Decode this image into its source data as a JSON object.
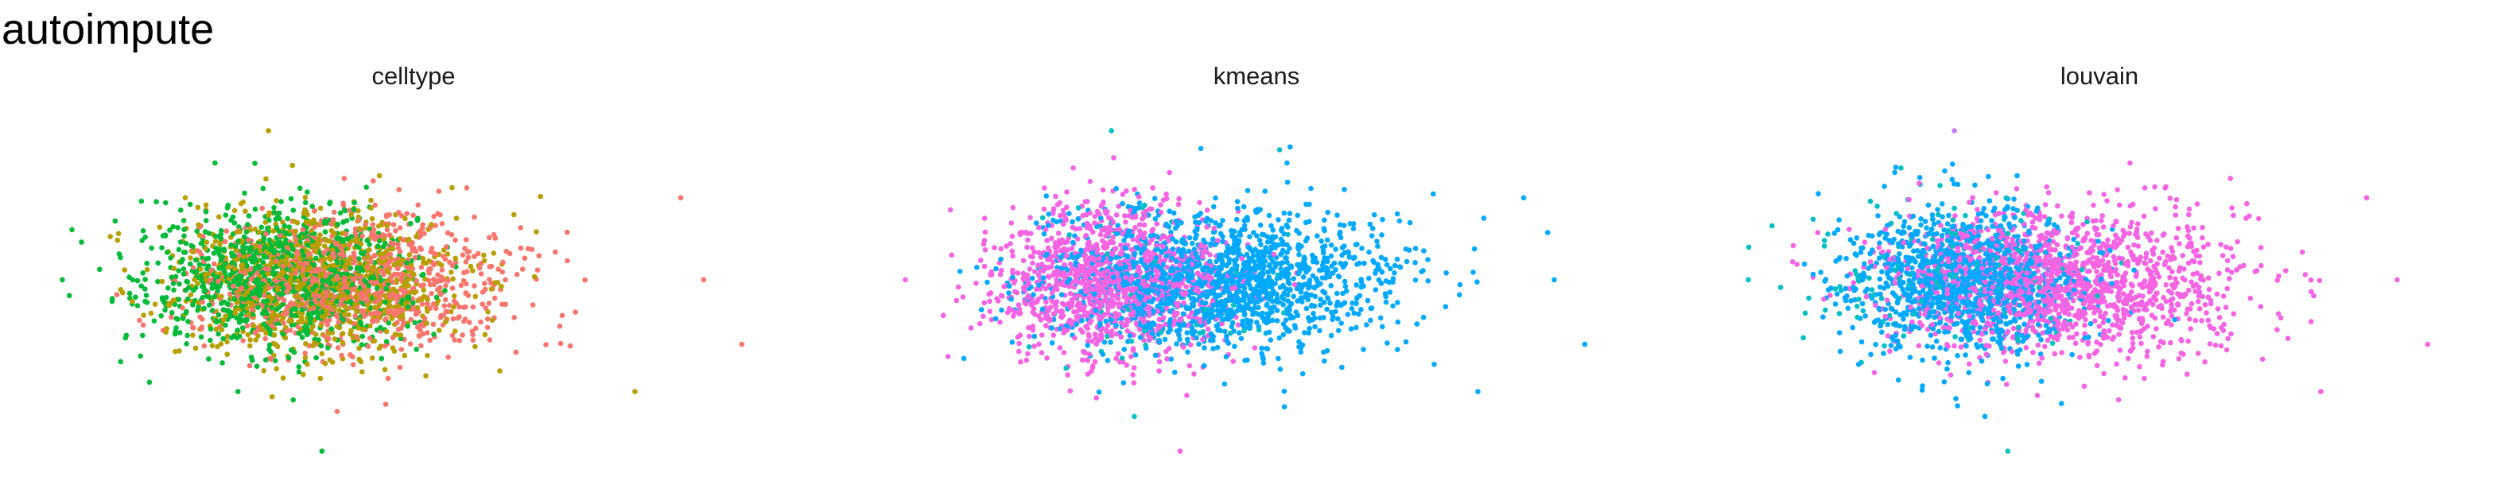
{
  "title": "autoimpute",
  "chart_data": [
    {
      "type": "scatter",
      "title": "celltype",
      "xlabel": "",
      "ylabel": "",
      "xlim": [
        -4,
        6
      ],
      "ylim": [
        -3.6,
        3.6
      ],
      "axes": false,
      "grid": false,
      "legend": "none",
      "series": [
        {
          "color": "#00BA38",
          "n": 1000,
          "center": [
            -0.8,
            0.05
          ],
          "spread": [
            0.85,
            0.72
          ]
        },
        {
          "color": "#B79F00",
          "n": 900,
          "center": [
            -0.3,
            0.0
          ],
          "spread": [
            0.95,
            0.72
          ]
        },
        {
          "color": "#F8766D",
          "n": 900,
          "center": [
            0.2,
            -0.05
          ],
          "spread": [
            1.05,
            0.7
          ]
        }
      ],
      "outliers": [
        {
          "x": -3.6,
          "y": 0.05,
          "color": "#00BA38"
        },
        {
          "x": -0.9,
          "y": 3.05,
          "color": "#B79F00"
        },
        {
          "x": -0.2,
          "y": -3.4,
          "color": "#00BA38"
        },
        {
          "x": 5.3,
          "y": -1.25,
          "color": "#F8766D"
        },
        {
          "x": 4.8,
          "y": 0.05,
          "color": "#F8766D"
        },
        {
          "x": 4.5,
          "y": 1.7,
          "color": "#F8766D"
        },
        {
          "x": 3.9,
          "y": -2.2,
          "color": "#B79F00"
        },
        {
          "x": -1.3,
          "y": -2.2,
          "color": "#00BA38"
        },
        {
          "x": 0.0,
          "y": -2.6,
          "color": "#F8766D"
        },
        {
          "x": -1.6,
          "y": 2.4,
          "color": "#00BA38"
        }
      ]
    },
    {
      "type": "scatter",
      "title": "kmeans",
      "xlabel": "",
      "ylabel": "",
      "xlim": [
        -4,
        6
      ],
      "ylim": [
        -3.6,
        3.6
      ],
      "axes": false,
      "grid": false,
      "legend": "none",
      "series": [
        {
          "color": "#F564E3",
          "n": 1200,
          "center": [
            -0.9,
            0.0
          ],
          "spread": [
            0.75,
            0.75
          ]
        },
        {
          "color": "#00A9FF",
          "n": 1600,
          "center": [
            0.5,
            0.0
          ],
          "spread": [
            1.15,
            0.72
          ]
        },
        {
          "color": "#00BFC4",
          "n": 80,
          "center": [
            -0.2,
            -0.2
          ],
          "spread": [
            0.8,
            0.8
          ]
        }
      ],
      "outliers": [
        {
          "x": -3.6,
          "y": 0.05,
          "color": "#F564E3"
        },
        {
          "x": -0.9,
          "y": 3.05,
          "color": "#00BFC4"
        },
        {
          "x": 0.0,
          "y": -3.4,
          "color": "#F564E3"
        },
        {
          "x": 5.3,
          "y": -1.25,
          "color": "#00A9FF"
        },
        {
          "x": 4.9,
          "y": 0.05,
          "color": "#00A9FF"
        },
        {
          "x": 4.5,
          "y": 1.7,
          "color": "#00A9FF"
        },
        {
          "x": 3.9,
          "y": -2.2,
          "color": "#00A9FF"
        },
        {
          "x": -0.6,
          "y": -2.7,
          "color": "#00BFC4"
        },
        {
          "x": 1.4,
          "y": 2.4,
          "color": "#00A9FF"
        },
        {
          "x": -1.4,
          "y": 2.3,
          "color": "#F564E3"
        }
      ]
    },
    {
      "type": "scatter",
      "title": "louvain",
      "xlabel": "",
      "ylabel": "",
      "xlim": [
        -4,
        6
      ],
      "ylim": [
        -3.6,
        3.6
      ],
      "axes": false,
      "grid": false,
      "legend": "none",
      "series": [
        {
          "color": "#00A9FF",
          "n": 1200,
          "center": [
            -0.8,
            0.0
          ],
          "spread": [
            0.75,
            0.72
          ]
        },
        {
          "color": "#F564E3",
          "n": 1500,
          "center": [
            0.5,
            0.0
          ],
          "spread": [
            1.15,
            0.72
          ]
        },
        {
          "color": "#00BFC4",
          "n": 150,
          "center": [
            -1.2,
            0.2
          ],
          "spread": [
            0.9,
            0.75
          ]
        }
      ],
      "outliers": [
        {
          "x": -3.6,
          "y": 0.05,
          "color": "#00BFC4"
        },
        {
          "x": -0.9,
          "y": 3.05,
          "color": "#C77CFF"
        },
        {
          "x": -0.2,
          "y": -3.4,
          "color": "#00BFC4"
        },
        {
          "x": 5.3,
          "y": -1.25,
          "color": "#F564E3"
        },
        {
          "x": 4.9,
          "y": 0.05,
          "color": "#F564E3"
        },
        {
          "x": 4.5,
          "y": 1.7,
          "color": "#F564E3"
        },
        {
          "x": 3.9,
          "y": -2.2,
          "color": "#F564E3"
        },
        {
          "x": -0.5,
          "y": -2.7,
          "color": "#00A9FF"
        },
        {
          "x": 1.4,
          "y": 2.4,
          "color": "#F564E3"
        },
        {
          "x": -1.6,
          "y": 2.3,
          "color": "#00BFC4"
        }
      ]
    }
  ]
}
